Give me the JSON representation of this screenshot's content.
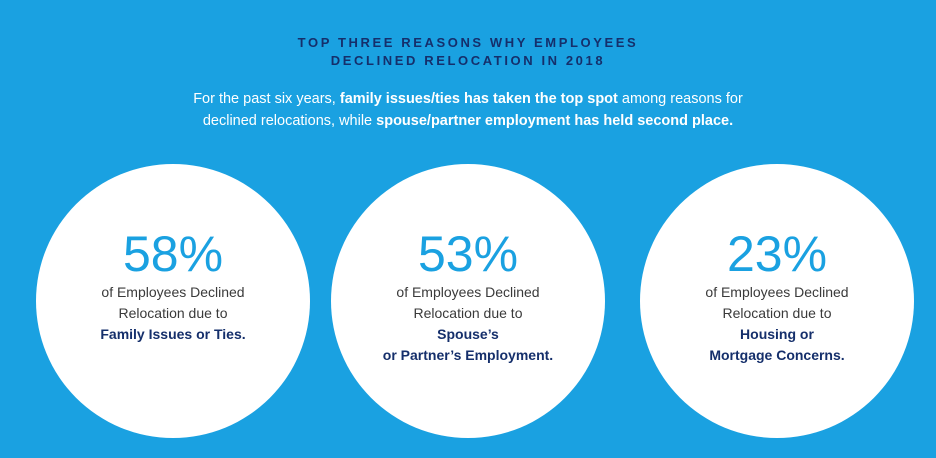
{
  "header": {
    "title_line1": "TOP THREE REASONS WHY EMPLOYEES",
    "title_line2": "DECLINED RELOCATION IN 2018"
  },
  "intro": {
    "l1_a": "For the past six years, ",
    "l1_b": "family issues/ties has taken the top spot",
    "l1_c": " among reasons for",
    "l2_a": "declined relocations, while ",
    "l2_b": "spouse/partner employment has held second place."
  },
  "stats": [
    {
      "percent": "58%",
      "line1": "of Employees Declined",
      "line2": "Relocation due to",
      "line2_emph": "",
      "line3": "Family Issues or Ties."
    },
    {
      "percent": "53%",
      "line1": "of Employees Declined",
      "line2": "Relocation due to ",
      "line2_emph": "Spouse’s",
      "line3": "or Partner’s Employment."
    },
    {
      "percent": "23%",
      "line1": "of Employees Declined",
      "line2": "Relocation due to ",
      "line2_emph": "Housing or",
      "line3": "Mortgage Concerns."
    }
  ],
  "colors": {
    "background": "#1aa1e1",
    "navy": "#152f6b",
    "white": "#ffffff"
  }
}
